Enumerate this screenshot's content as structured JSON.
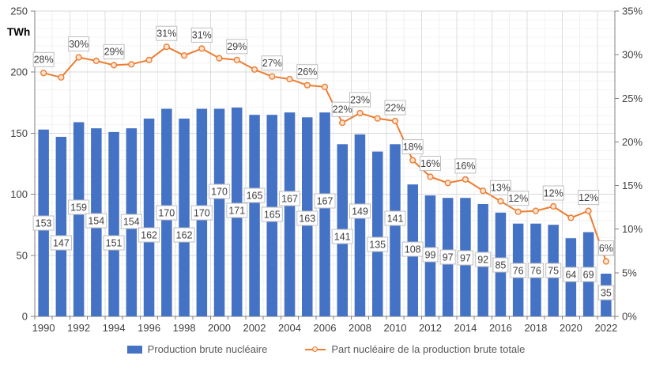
{
  "chart_data": {
    "type": "combo-bar-line",
    "title": "",
    "categories": [
      1990,
      1991,
      1992,
      1993,
      1994,
      1995,
      1996,
      1997,
      1998,
      1999,
      2000,
      2001,
      2002,
      2003,
      2004,
      2005,
      2006,
      2007,
      2008,
      2009,
      2010,
      2011,
      2012,
      2013,
      2014,
      2015,
      2016,
      2017,
      2018,
      2019,
      2020,
      2021,
      2022
    ],
    "series": [
      {
        "name": "Production brute nucléaire",
        "type": "bar",
        "axis": "left",
        "unit": "TWh",
        "color": "#4472C4",
        "values": [
          153,
          147,
          159,
          154,
          151,
          154,
          162,
          170,
          162,
          170,
          170,
          171,
          165,
          165,
          167,
          163,
          167,
          141,
          149,
          135,
          141,
          108,
          99,
          97,
          97,
          92,
          85,
          76,
          76,
          75,
          64,
          69,
          35
        ],
        "data_labels_shown": true
      },
      {
        "name": "Part nucléaire de la production brute totale",
        "type": "line",
        "axis": "right",
        "unit": "%",
        "color": "#ED7D31",
        "marker_fill": "#FCE4D2",
        "values": [
          27.9,
          27.4,
          29.7,
          29.3,
          28.8,
          28.9,
          29.4,
          30.9,
          29.9,
          30.7,
          29.6,
          29.4,
          28.3,
          27.5,
          27.2,
          26.5,
          26.3,
          22.2,
          23.3,
          22.7,
          22.4,
          17.9,
          16,
          15.3,
          15.7,
          14.4,
          13.2,
          12,
          12.1,
          12.6,
          11.3,
          12.1,
          6.3
        ],
        "point_labels": {
          "1990": "28%",
          "1992": "30%",
          "1994": "29%",
          "1997": "31%",
          "1999": "31%",
          "2001": "29%",
          "2003": "27%",
          "2005": "26%",
          "2007": "22%",
          "2008": "23%",
          "2010": "22%",
          "2011": "18%",
          "2012": "16%",
          "2014": "16%",
          "2016": "13%",
          "2017": "12%",
          "2019": "12%",
          "2021": "12%",
          "2022": "6%"
        }
      }
    ],
    "left_axis": {
      "title": "TWh",
      "min": 0,
      "max": 250,
      "step": 50,
      "tick_labels": [
        "0",
        "50",
        "100",
        "150",
        "200",
        "250"
      ]
    },
    "right_axis": {
      "title": "",
      "min": 0,
      "max": 35,
      "step": 5,
      "tick_labels": [
        "0%",
        "5%",
        "10%",
        "15%",
        "20%",
        "25%",
        "30%",
        "35%"
      ]
    },
    "x_axis": {
      "labeled_years": [
        1990,
        1992,
        1994,
        1996,
        1998,
        2000,
        2002,
        2004,
        2006,
        2008,
        2010,
        2012,
        2014,
        2016,
        2018,
        2020,
        2022
      ]
    },
    "grid": {
      "major_horizontal": true,
      "minor_horizontal": true,
      "vertical": true
    },
    "legend_position": "bottom",
    "layout_hints": {
      "bar_label_center_y": [
        282,
        307,
        262,
        279,
        307,
        280,
        297,
        269,
        297,
        269,
        242,
        266,
        247,
        271,
        251,
        276,
        254,
        299,
        267,
        309,
        276,
        315,
        322,
        325,
        326,
        328,
        335,
        342,
        342,
        342,
        347,
        347,
        370
      ]
    }
  },
  "colors": {
    "bar": "#4472C4",
    "line": "#ED7D31",
    "marker_fill": "#FCE4D2",
    "grid_major": "#D9D9D9",
    "grid_minor": "#F4F4F4",
    "grid_vertical_major": "#DCDCDC",
    "grid_vertical_minor": "#F0F0F0",
    "axis_line": "#808080",
    "tick_text": "#404040",
    "data_label_text": "#404040",
    "data_label_border": "#BFBFBF",
    "legend_text": "#595959"
  }
}
